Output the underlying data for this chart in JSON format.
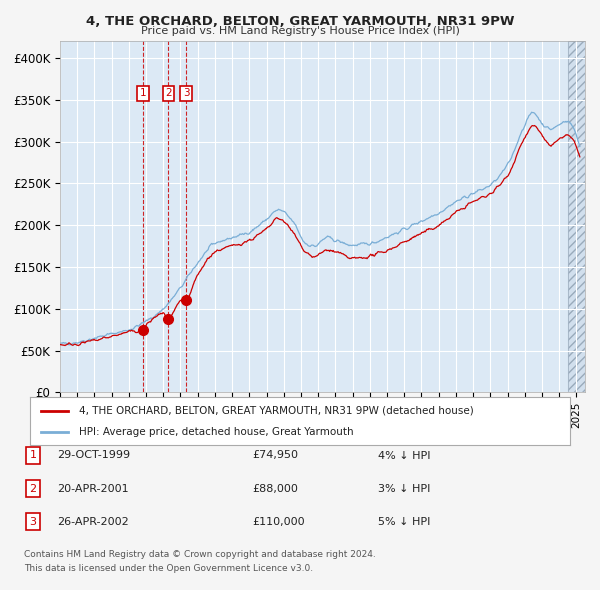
{
  "title": "4, THE ORCHARD, BELTON, GREAT YARMOUTH, NR31 9PW",
  "subtitle": "Price paid vs. HM Land Registry's House Price Index (HPI)",
  "ylim": [
    0,
    420000
  ],
  "yticks": [
    0,
    50000,
    100000,
    150000,
    200000,
    250000,
    300000,
    350000,
    400000
  ],
  "ytick_labels": [
    "£0",
    "£50K",
    "£100K",
    "£150K",
    "£200K",
    "£250K",
    "£300K",
    "£350K",
    "£400K"
  ],
  "xlim_start": 1995.0,
  "xlim_end": 2025.5,
  "plot_bg_color": "#dce9f5",
  "grid_color": "#ffffff",
  "red_line_color": "#cc0000",
  "blue_line_color": "#7aaed6",
  "sales": [
    {
      "num": 1,
      "date_str": "29-OCT-1999",
      "year": 1999.83,
      "price": 74950,
      "hpi_note": "4% ↓ HPI"
    },
    {
      "num": 2,
      "date_str": "20-APR-2001",
      "year": 2001.3,
      "price": 88000,
      "hpi_note": "3% ↓ HPI"
    },
    {
      "num": 3,
      "date_str": "26-APR-2002",
      "year": 2002.32,
      "price": 110000,
      "hpi_note": "5% ↓ HPI"
    }
  ],
  "legend_red": "4, THE ORCHARD, BELTON, GREAT YARMOUTH, NR31 9PW (detached house)",
  "legend_blue": "HPI: Average price, detached house, Great Yarmouth",
  "footer1": "Contains HM Land Registry data © Crown copyright and database right 2024.",
  "footer2": "This data is licensed under the Open Government Licence v3.0.",
  "fig_bg_color": "#f5f5f5"
}
